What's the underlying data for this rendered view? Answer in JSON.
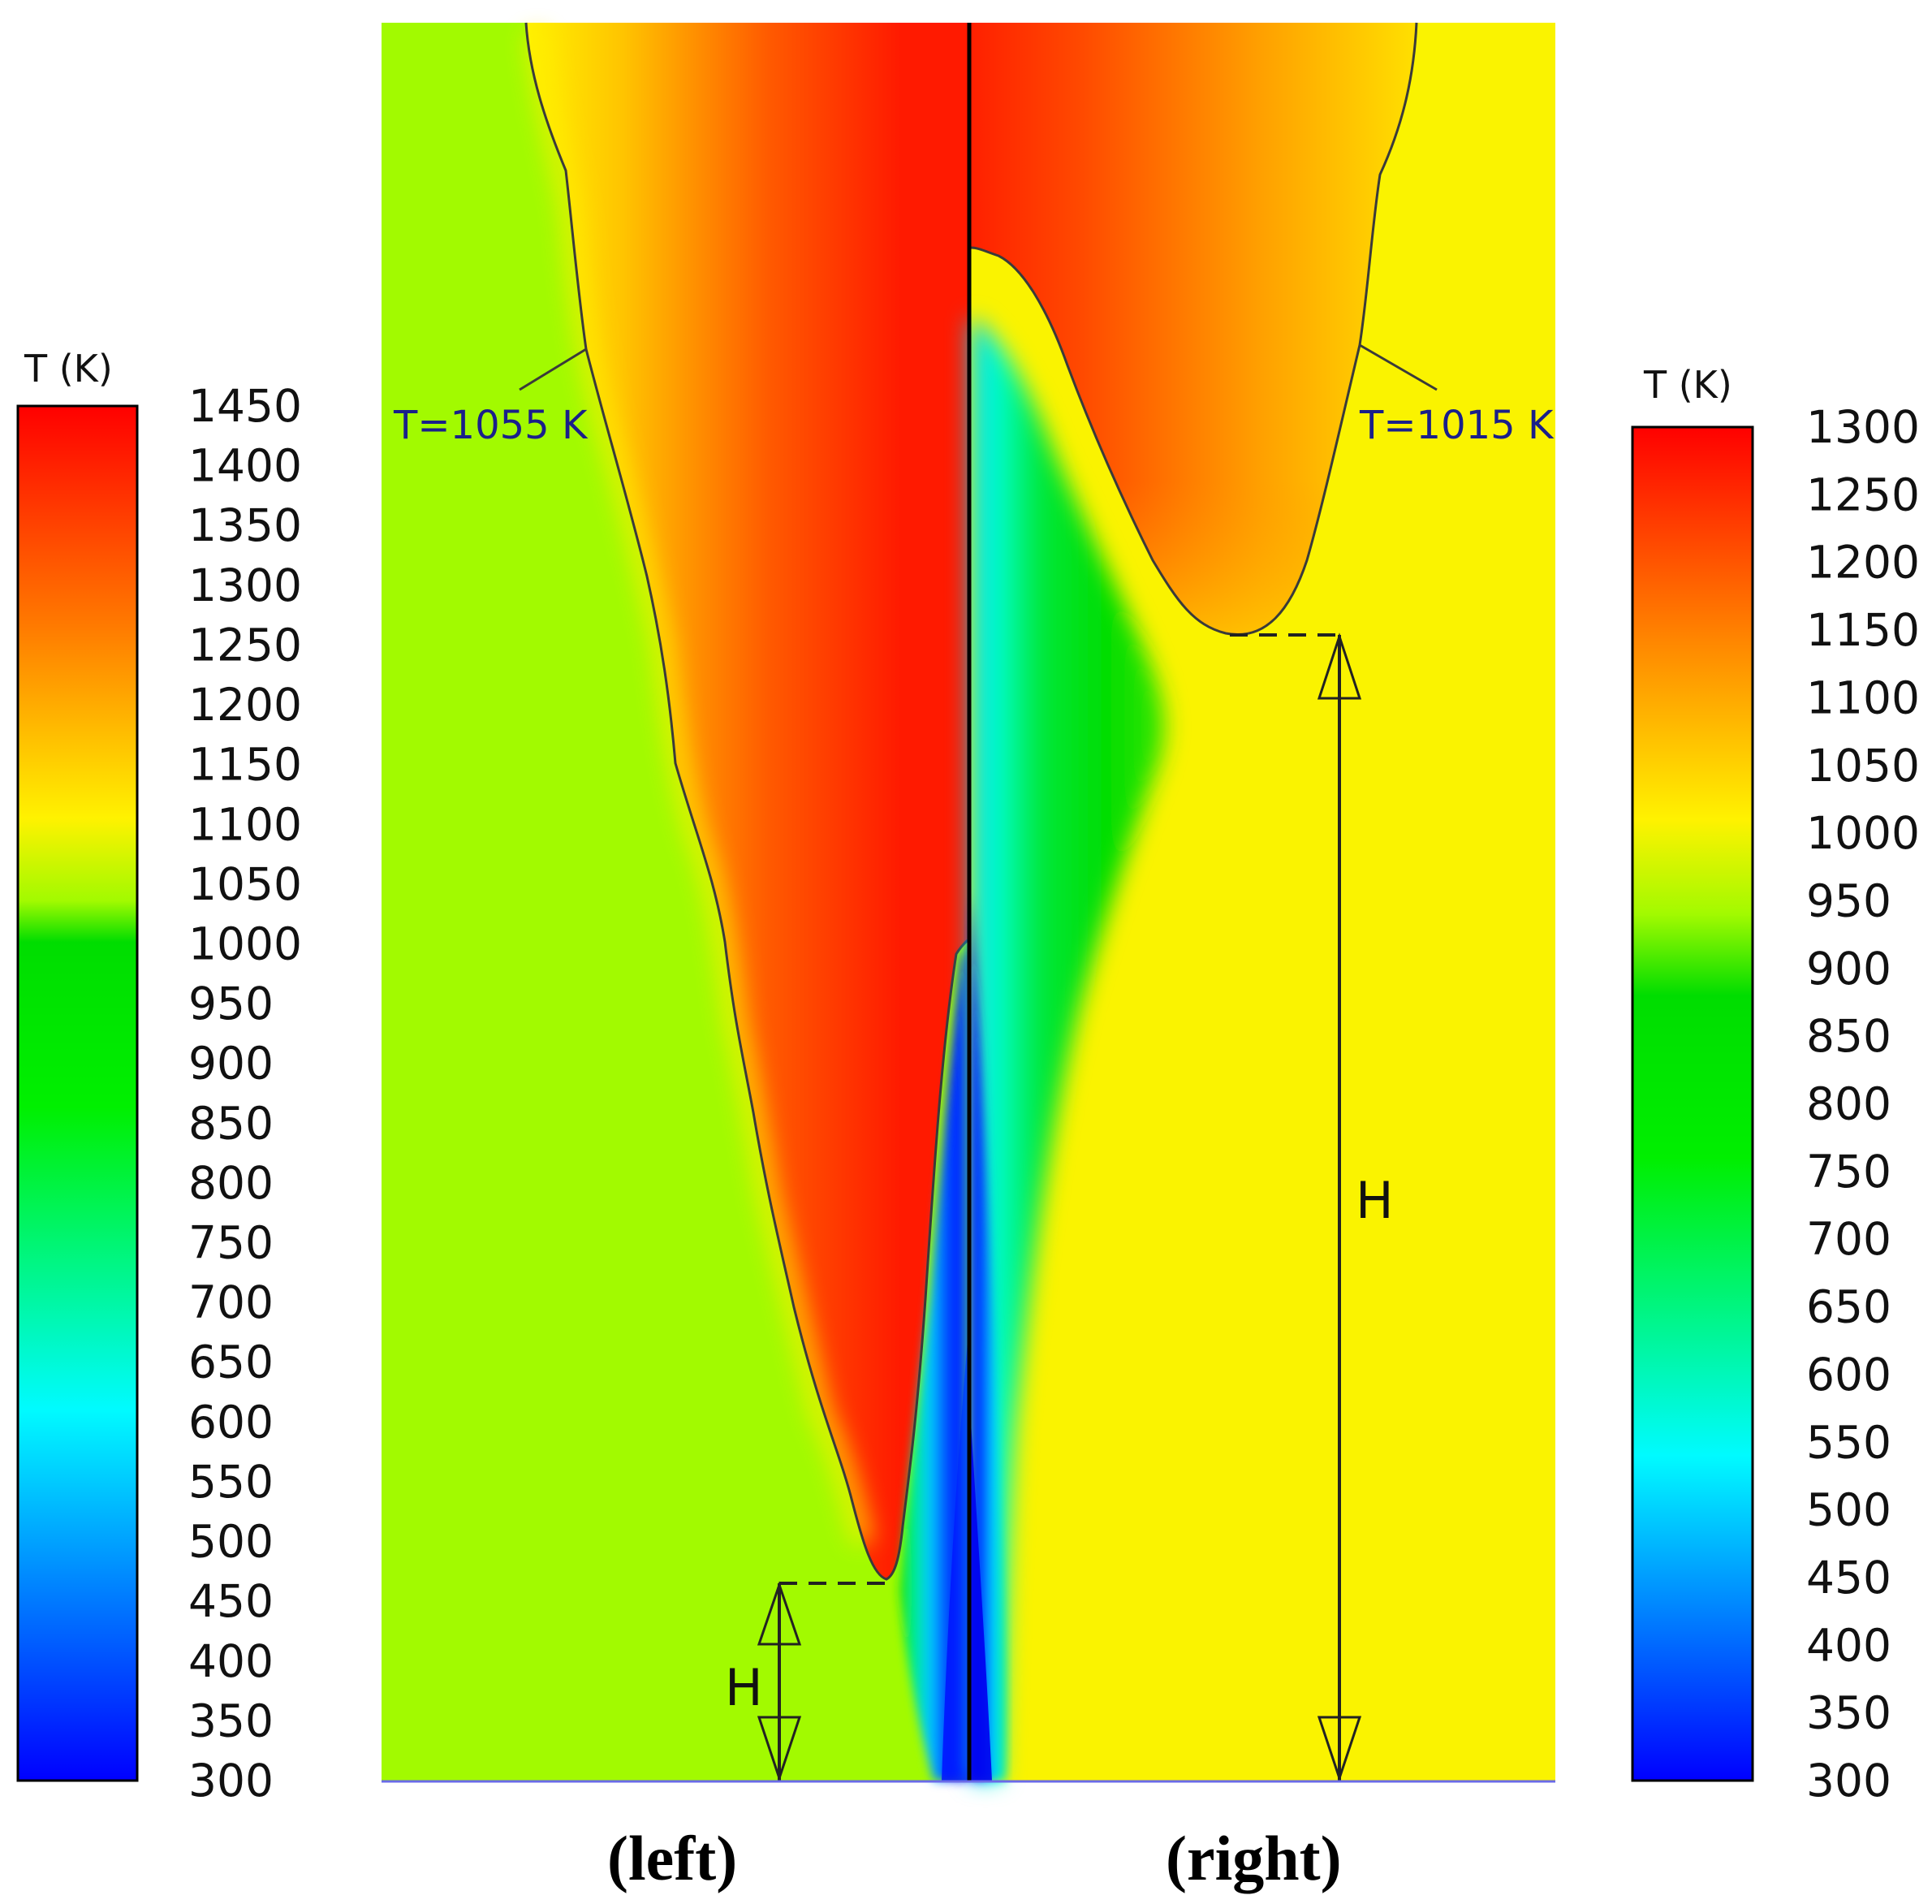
{
  "left_panel": {
    "caption": "(left)",
    "isotherm_label": "T=1055 K",
    "height_label": "H",
    "ambient_color": "#a2fa00"
  },
  "right_panel": {
    "caption": "(right)",
    "isotherm_label": "T=1015 K",
    "height_label": "H",
    "ambient_color": "#faf300"
  },
  "left_colorbar": {
    "title": "T (K)",
    "ticks": [
      "1450",
      "1400",
      "1350",
      "1300",
      "1250",
      "1200",
      "1150",
      "1100",
      "1050",
      "1000",
      "950",
      "900",
      "850",
      "800",
      "750",
      "700",
      "650",
      "600",
      "550",
      "500",
      "450",
      "400",
      "350",
      "300"
    ]
  },
  "right_colorbar": {
    "title": "T (K)",
    "ticks": [
      "1300",
      "1250",
      "1200",
      "1150",
      "1100",
      "1050",
      "1000",
      "950",
      "900",
      "850",
      "800",
      "750",
      "700",
      "650",
      "600",
      "550",
      "500",
      "450",
      "400",
      "350",
      "300"
    ]
  },
  "colors": {
    "hot": "#ff1a00",
    "orange": "#ff7a00",
    "yellow": "#fff200",
    "green": "#00dd00",
    "cyan": "#00f5f5",
    "blue": "#0000ff"
  }
}
